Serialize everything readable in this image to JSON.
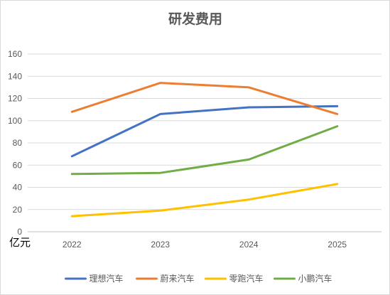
{
  "chart_data": {
    "type": "line",
    "title": "研发费用",
    "unit_label": "亿元",
    "categories": [
      "2022",
      "2023",
      "2024",
      "2025"
    ],
    "ylim": [
      0,
      160
    ],
    "yticks": [
      0,
      20,
      40,
      60,
      80,
      100,
      120,
      140,
      160
    ],
    "ytick_labels": [
      "0",
      "20",
      "40",
      "60",
      "80",
      "100",
      "120",
      "140",
      "160"
    ],
    "grid": true,
    "legend_position": "bottom",
    "series": [
      {
        "name": "理想汽车",
        "color": "#4472C4",
        "values": [
          68,
          106,
          112,
          113
        ]
      },
      {
        "name": "蔚来汽车",
        "color": "#ED7D31",
        "values": [
          108,
          134,
          130,
          106
        ]
      },
      {
        "name": "零跑汽车",
        "color": "#FFC000",
        "values": [
          14,
          19,
          29,
          43
        ]
      },
      {
        "name": "小鹏汽车",
        "color": "#70AD47",
        "values": [
          52,
          53,
          65,
          95
        ]
      }
    ]
  }
}
